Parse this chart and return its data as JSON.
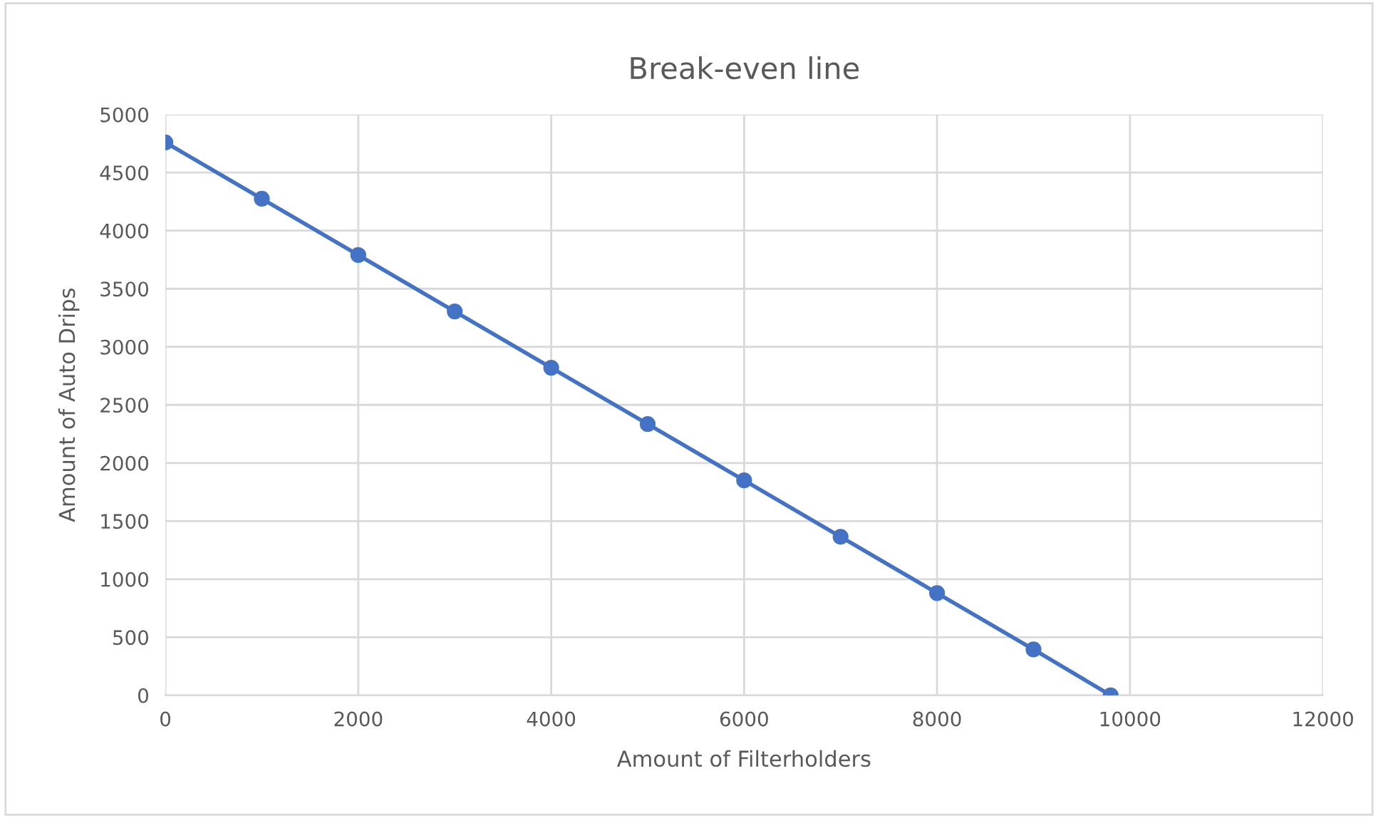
{
  "chart_data": {
    "type": "line",
    "title": "Break-even line",
    "xlabel": "Amount of Filterholders",
    "ylabel": "Amount of Auto Drips",
    "series": [
      {
        "color": "#4472c4",
        "x": [
          0,
          1000,
          2000,
          3000,
          4000,
          5000,
          6000,
          7000,
          8000,
          9000,
          9800
        ],
        "values": [
          4760,
          4275,
          3790,
          3305,
          2820,
          2335,
          1850,
          1365,
          880,
          395,
          0
        ]
      }
    ],
    "xlim": [
      0,
      12000
    ],
    "xticks": [
      0,
      2000,
      4000,
      6000,
      8000,
      10000,
      12000
    ],
    "ylim": [
      0,
      5000
    ],
    "yticks": [
      0,
      500,
      1000,
      1500,
      2000,
      2500,
      3000,
      3500,
      4000,
      4500,
      5000
    ],
    "grid": true,
    "marker": "circle",
    "line_style": "solid",
    "legend": false
  }
}
